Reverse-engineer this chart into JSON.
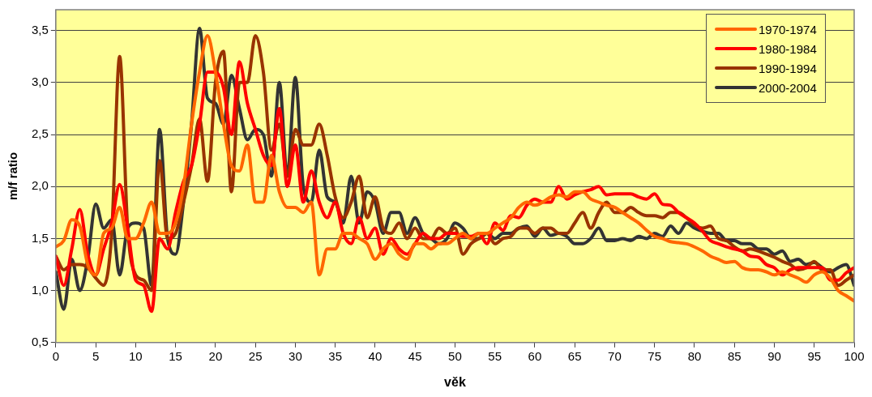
{
  "chart_data": {
    "type": "line",
    "xlabel": "věk",
    "ylabel": "m/f ratio",
    "x": [
      0,
      1,
      2,
      3,
      4,
      5,
      6,
      7,
      8,
      9,
      10,
      11,
      12,
      13,
      14,
      15,
      16,
      17,
      18,
      19,
      20,
      21,
      22,
      23,
      24,
      25,
      26,
      27,
      28,
      29,
      30,
      31,
      32,
      33,
      34,
      35,
      36,
      37,
      38,
      39,
      40,
      41,
      42,
      43,
      44,
      45,
      46,
      47,
      48,
      49,
      50,
      51,
      52,
      53,
      54,
      55,
      56,
      57,
      58,
      59,
      60,
      61,
      62,
      63,
      64,
      65,
      66,
      67,
      68,
      69,
      70,
      71,
      72,
      73,
      74,
      75,
      76,
      77,
      78,
      79,
      80,
      81,
      82,
      83,
      84,
      85,
      86,
      87,
      88,
      89,
      90,
      91,
      92,
      93,
      94,
      95,
      96,
      97,
      98,
      99,
      100
    ],
    "series": [
      {
        "name": "1970-1974",
        "color": "#ff6600",
        "values": [
          1.42,
          1.48,
          1.68,
          1.62,
          1.25,
          1.15,
          1.55,
          1.6,
          1.8,
          1.5,
          1.5,
          1.65,
          1.85,
          1.55,
          1.55,
          1.65,
          2.0,
          2.6,
          3.1,
          3.45,
          3.1,
          2.6,
          2.2,
          2.15,
          2.4,
          1.85,
          1.85,
          2.3,
          1.95,
          1.8,
          1.8,
          1.75,
          1.85,
          1.15,
          1.4,
          1.4,
          1.55,
          1.55,
          1.5,
          1.45,
          1.3,
          1.4,
          1.45,
          1.35,
          1.3,
          1.45,
          1.45,
          1.4,
          1.45,
          1.45,
          1.5,
          1.55,
          1.5,
          1.55,
          1.55,
          1.6,
          1.65,
          1.7,
          1.8,
          1.85,
          1.82,
          1.85,
          1.9,
          1.92,
          1.9,
          1.95,
          1.95,
          1.88,
          1.85,
          1.82,
          1.8,
          1.75,
          1.7,
          1.65,
          1.58,
          1.52,
          1.5,
          1.47,
          1.46,
          1.45,
          1.42,
          1.38,
          1.33,
          1.3,
          1.27,
          1.28,
          1.22,
          1.2,
          1.2,
          1.18,
          1.15,
          1.18,
          1.15,
          1.12,
          1.08,
          1.15,
          1.18,
          1.12,
          1.0,
          0.95,
          0.9
        ]
      },
      {
        "name": "1980-1984",
        "color": "#ff0000",
        "values": [
          1.33,
          1.05,
          1.4,
          1.78,
          1.35,
          1.15,
          1.4,
          1.65,
          2.02,
          1.6,
          1.1,
          1.05,
          0.8,
          1.5,
          1.4,
          1.75,
          2.05,
          2.2,
          2.6,
          3.1,
          3.1,
          2.95,
          2.5,
          3.2,
          2.8,
          2.55,
          2.3,
          2.2,
          2.75,
          2.0,
          2.4,
          1.85,
          2.15,
          1.85,
          1.7,
          1.85,
          1.55,
          1.45,
          1.7,
          1.5,
          1.6,
          1.35,
          1.5,
          1.4,
          1.35,
          1.45,
          1.55,
          1.5,
          1.5,
          1.55,
          1.55,
          1.52,
          1.52,
          1.55,
          1.45,
          1.65,
          1.58,
          1.72,
          1.7,
          1.82,
          1.88,
          1.85,
          1.85,
          2.0,
          1.88,
          1.92,
          1.95,
          1.97,
          2.0,
          1.92,
          1.93,
          1.93,
          1.93,
          1.9,
          1.88,
          1.93,
          1.83,
          1.82,
          1.75,
          1.7,
          1.65,
          1.57,
          1.48,
          1.45,
          1.42,
          1.4,
          1.38,
          1.33,
          1.32,
          1.25,
          1.22,
          1.15,
          1.2,
          1.22,
          1.22,
          1.22,
          1.22,
          1.1,
          1.1,
          1.17,
          1.22
        ]
      },
      {
        "name": "1990-1994",
        "color": "#993300",
        "values": [
          1.33,
          1.2,
          1.25,
          1.25,
          1.22,
          1.12,
          1.05,
          1.55,
          3.25,
          1.6,
          1.15,
          1.1,
          1.0,
          2.25,
          1.5,
          1.55,
          1.85,
          2.2,
          2.65,
          2.05,
          3.0,
          3.3,
          1.95,
          3.0,
          3.0,
          3.45,
          3.1,
          2.35,
          2.6,
          2.1,
          2.55,
          2.4,
          2.4,
          2.6,
          2.3,
          1.9,
          1.7,
          1.85,
          2.1,
          1.7,
          1.9,
          1.6,
          1.55,
          1.65,
          1.5,
          1.6,
          1.5,
          1.5,
          1.6,
          1.55,
          1.6,
          1.35,
          1.45,
          1.5,
          1.55,
          1.45,
          1.5,
          1.52,
          1.6,
          1.6,
          1.55,
          1.6,
          1.6,
          1.55,
          1.55,
          1.65,
          1.75,
          1.6,
          1.75,
          1.85,
          1.75,
          1.75,
          1.8,
          1.75,
          1.72,
          1.72,
          1.7,
          1.75,
          1.75,
          1.7,
          1.63,
          1.6,
          1.62,
          1.5,
          1.48,
          1.42,
          1.38,
          1.4,
          1.38,
          1.35,
          1.32,
          1.28,
          1.25,
          1.2,
          1.22,
          1.28,
          1.2,
          1.2,
          1.05,
          1.1,
          1.15
        ]
      },
      {
        "name": "2000-2004",
        "color": "#333333",
        "values": [
          1.18,
          0.82,
          1.3,
          1.0,
          1.3,
          1.83,
          1.6,
          1.68,
          1.15,
          1.6,
          1.65,
          1.6,
          1.05,
          2.55,
          1.5,
          1.35,
          1.85,
          2.6,
          3.52,
          2.85,
          2.8,
          2.6,
          3.07,
          2.75,
          2.45,
          2.55,
          2.5,
          2.1,
          3.0,
          2.1,
          3.05,
          2.0,
          1.85,
          2.35,
          1.9,
          1.85,
          1.65,
          2.1,
          1.65,
          1.95,
          1.85,
          1.55,
          1.75,
          1.75,
          1.55,
          1.7,
          1.55,
          1.5,
          1.45,
          1.5,
          1.65,
          1.6,
          1.5,
          1.5,
          1.55,
          1.5,
          1.55,
          1.55,
          1.6,
          1.62,
          1.52,
          1.6,
          1.53,
          1.55,
          1.52,
          1.45,
          1.45,
          1.5,
          1.6,
          1.48,
          1.48,
          1.5,
          1.48,
          1.52,
          1.5,
          1.55,
          1.52,
          1.62,
          1.55,
          1.65,
          1.6,
          1.57,
          1.55,
          1.55,
          1.48,
          1.48,
          1.45,
          1.45,
          1.4,
          1.4,
          1.35,
          1.38,
          1.28,
          1.3,
          1.25,
          1.27,
          1.22,
          1.18,
          1.22,
          1.25,
          1.05
        ]
      }
    ],
    "xlim": [
      0,
      100
    ],
    "xticks": [
      0,
      5,
      10,
      15,
      20,
      25,
      30,
      35,
      40,
      45,
      50,
      55,
      60,
      65,
      70,
      75,
      80,
      85,
      90,
      95,
      100
    ],
    "ylim": [
      0.5,
      3.7
    ],
    "yticks": [
      {
        "value": 0.5,
        "label": "0,5"
      },
      {
        "value": 1.0,
        "label": "1,0"
      },
      {
        "value": 1.5,
        "label": "1,5"
      },
      {
        "value": 2.0,
        "label": "2,0"
      },
      {
        "value": 2.5,
        "label": "2,5"
      },
      {
        "value": 3.0,
        "label": "3,0"
      },
      {
        "value": 3.5,
        "label": "3,5"
      }
    ],
    "grid": "y",
    "legend": "top right",
    "marker": "none",
    "line_style": "solid"
  }
}
